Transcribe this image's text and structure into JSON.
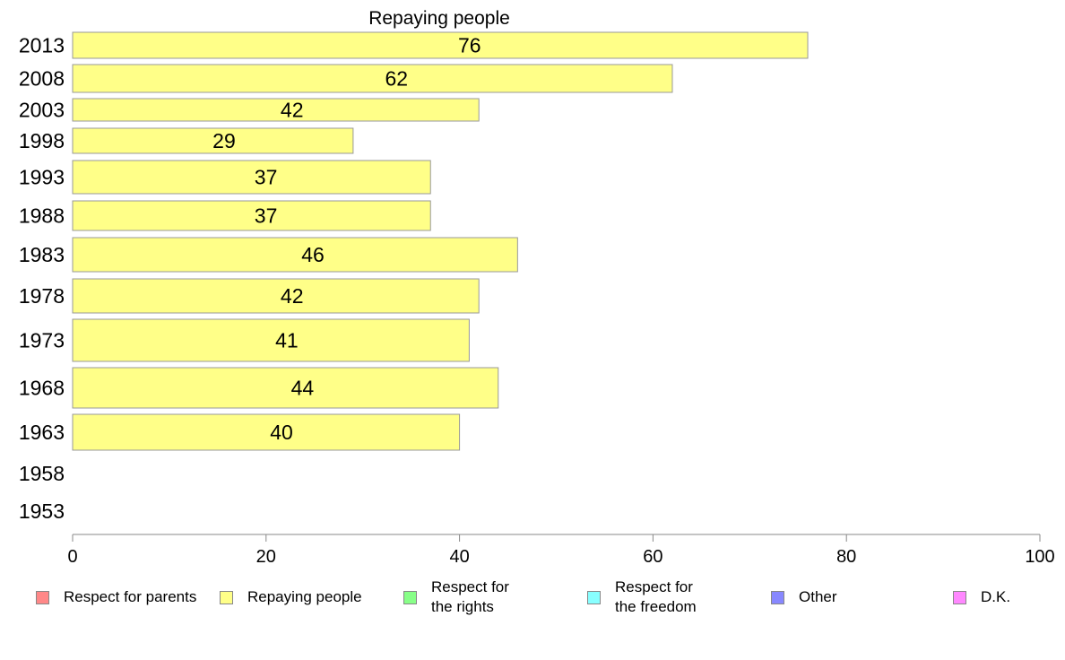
{
  "chart_data": {
    "type": "bar",
    "orientation": "horizontal",
    "title": "Repaying people",
    "categories": [
      "2013",
      "2008",
      "2003",
      "1998",
      "1993",
      "1988",
      "1983",
      "1978",
      "1973",
      "1968",
      "1963",
      "1958",
      "1953"
    ],
    "series": [
      {
        "name": "Repaying people",
        "color": "#ffff88",
        "values": [
          76,
          62,
          42,
          29,
          37,
          37,
          46,
          42,
          41,
          44,
          40,
          null,
          null
        ],
        "labels": [
          "76",
          "62",
          "42",
          "29",
          "37",
          "37",
          "46",
          "42",
          "41",
          "44",
          "40",
          "",
          ""
        ]
      }
    ],
    "xlim": [
      0,
      100
    ],
    "xticks": [
      "0",
      "20",
      "40",
      "60",
      "80",
      "100"
    ],
    "grid": false,
    "legend_position": "bottom",
    "legend": [
      {
        "label": "Respect for parents",
        "color": "#ff8888"
      },
      {
        "label": "Repaying people",
        "color": "#ffff88"
      },
      {
        "label": "Respect for\nthe rights",
        "color": "#88ff88"
      },
      {
        "label": "Respect for\nthe freedom",
        "color": "#88ffff"
      },
      {
        "label": "Other",
        "color": "#8888ff"
      },
      {
        "label": "D.K.",
        "color": "#ff88ff"
      }
    ]
  }
}
